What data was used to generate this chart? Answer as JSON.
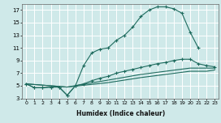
{
  "xlabel": "Humidex (Indice chaleur)",
  "background_color": "#cfe9e9",
  "grid_color": "#ffffff",
  "line_color": "#1e6b5e",
  "xlim": [
    -0.5,
    23.5
  ],
  "ylim": [
    3,
    18
  ],
  "xticks": [
    0,
    1,
    2,
    3,
    4,
    5,
    6,
    7,
    8,
    9,
    10,
    11,
    12,
    13,
    14,
    15,
    16,
    17,
    18,
    19,
    20,
    21,
    22,
    23
  ],
  "yticks": [
    3,
    5,
    7,
    9,
    11,
    13,
    15,
    17
  ],
  "curve_main_x": [
    0,
    1,
    2,
    3,
    4,
    5,
    6,
    7,
    8,
    9,
    10,
    11,
    12,
    13,
    14,
    15,
    16,
    17,
    18,
    19,
    20,
    21
  ],
  "curve_main_y": [
    5.3,
    4.7,
    4.7,
    4.8,
    4.8,
    3.5,
    5.0,
    8.2,
    10.2,
    10.8,
    11.0,
    12.2,
    13.0,
    14.3,
    16.0,
    17.0,
    17.5,
    17.5,
    17.2,
    16.5,
    13.5,
    11.0
  ],
  "curve_second_x": [
    0,
    1,
    2,
    3,
    4,
    5,
    6,
    7,
    8,
    9,
    10,
    11,
    12,
    13,
    14,
    15,
    16,
    17,
    18,
    19,
    20,
    21,
    22,
    23
  ],
  "curve_second_y": [
    5.3,
    4.7,
    4.7,
    4.8,
    4.8,
    3.5,
    5.0,
    5.3,
    5.8,
    6.2,
    6.5,
    7.0,
    7.3,
    7.6,
    7.9,
    8.2,
    8.5,
    8.7,
    9.0,
    9.2,
    9.2,
    8.5,
    8.2,
    8.0
  ],
  "curve_third_x": [
    0,
    5,
    10,
    14,
    20,
    22,
    23
  ],
  "curve_third_y": [
    5.3,
    4.8,
    5.9,
    6.8,
    7.8,
    7.8,
    7.8
  ],
  "curve_fourth_x": [
    0,
    5,
    10,
    14,
    20,
    22,
    23
  ],
  "curve_fourth_y": [
    5.3,
    4.8,
    5.5,
    6.3,
    7.3,
    7.3,
    7.5
  ]
}
